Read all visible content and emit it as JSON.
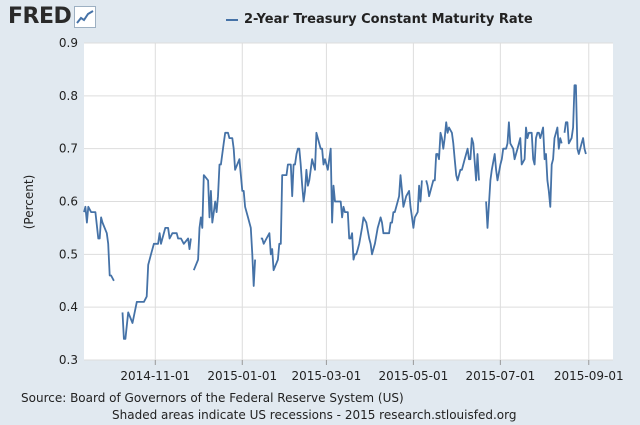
{
  "logo": {
    "text": "FRED"
  },
  "source_text": "Source: Board of Governors of the Federal Reserve System (US)",
  "note_text": "Shaded areas indicate US recessions - 2015 research.stlouisfed.org",
  "colors": {
    "background": "#e1e9f0",
    "plot": "#ffffff",
    "line": "#4572a7",
    "grid": "#dddddd"
  },
  "chart_data": {
    "type": "line",
    "title": "",
    "xlabel": "",
    "ylabel": "(Percent)",
    "grid": true,
    "legend_position": "top",
    "x_ticks": [
      "2014-11-01",
      "2015-01-01",
      "2015-03-01",
      "2015-05-01",
      "2015-07-01",
      "2015-09-01"
    ],
    "y_ticks": [
      0.3,
      0.4,
      0.5,
      0.6,
      0.7,
      0.8,
      0.9
    ],
    "xlim": [
      "2014-09-12",
      "2015-09-18"
    ],
    "ylim": [
      0.3,
      0.9
    ],
    "series": [
      {
        "name": "2-Year Treasury Constant Maturity Rate",
        "color": "#4572a7",
        "points": [
          [
            "2014-09-12",
            0.58
          ],
          [
            "2014-09-13",
            0.59
          ],
          [
            "2014-09-14",
            0.56
          ],
          [
            "2014-09-15",
            0.59
          ],
          [
            "2014-09-17",
            0.58
          ],
          [
            "2014-09-20",
            0.58
          ],
          [
            "2014-09-22",
            0.53
          ],
          [
            "2014-09-23",
            0.53
          ],
          [
            "2014-09-24",
            0.57
          ],
          [
            "2014-09-25",
            0.56
          ],
          [
            "2014-09-28",
            0.54
          ],
          [
            "2014-09-29",
            0.52
          ],
          [
            "2014-09-30",
            0.46
          ],
          [
            "2014-10-01",
            0.46
          ],
          [
            "2014-10-03",
            0.45
          ],
          null,
          [
            "2014-10-09",
            0.39
          ],
          [
            "2014-10-10",
            0.34
          ],
          [
            "2014-10-11",
            0.34
          ],
          [
            "2014-10-13",
            0.39
          ],
          [
            "2014-10-16",
            0.37
          ],
          [
            "2014-10-19",
            0.41
          ],
          [
            "2014-10-22",
            0.41
          ],
          [
            "2014-10-24",
            0.41
          ],
          [
            "2014-10-26",
            0.42
          ],
          [
            "2014-10-27",
            0.48
          ],
          [
            "2014-10-29",
            0.5
          ],
          [
            "2014-10-31",
            0.52
          ],
          [
            "2014-11-02",
            0.52
          ],
          [
            "2014-11-03",
            0.52
          ],
          [
            "2014-11-04",
            0.54
          ],
          [
            "2014-11-05",
            0.52
          ],
          [
            "2014-11-06",
            0.53
          ],
          [
            "2014-11-08",
            0.55
          ],
          [
            "2014-11-10",
            0.55
          ],
          [
            "2014-11-11",
            0.53
          ],
          [
            "2014-11-13",
            0.54
          ],
          [
            "2014-11-16",
            0.54
          ],
          [
            "2014-11-17",
            0.53
          ],
          [
            "2014-11-19",
            0.53
          ],
          [
            "2014-11-21",
            0.52
          ],
          [
            "2014-11-24",
            0.53
          ],
          [
            "2014-11-25",
            0.51
          ],
          [
            "2014-11-26",
            0.53
          ],
          null,
          [
            "2014-11-28",
            0.47
          ],
          [
            "2014-12-01",
            0.49
          ],
          [
            "2014-12-02",
            0.55
          ],
          [
            "2014-12-03",
            0.57
          ],
          [
            "2014-12-04",
            0.55
          ],
          [
            "2014-12-05",
            0.65
          ],
          [
            "2014-12-08",
            0.64
          ],
          [
            "2014-12-09",
            0.57
          ],
          [
            "2014-12-10",
            0.62
          ],
          [
            "2014-12-11",
            0.56
          ],
          [
            "2014-12-12",
            0.58
          ],
          [
            "2014-12-13",
            0.6
          ],
          [
            "2014-12-14",
            0.58
          ],
          [
            "2014-12-15",
            0.61
          ],
          [
            "2014-12-16",
            0.67
          ],
          [
            "2014-12-17",
            0.67
          ],
          [
            "2014-12-19",
            0.71
          ],
          [
            "2014-12-20",
            0.73
          ],
          [
            "2014-12-21",
            0.73
          ],
          [
            "2014-12-22",
            0.73
          ],
          [
            "2014-12-23",
            0.72
          ],
          [
            "2014-12-25",
            0.72
          ],
          [
            "2014-12-26",
            0.7
          ],
          [
            "2014-12-27",
            0.66
          ],
          [
            "2014-12-30",
            0.68
          ],
          [
            "2015-01-01",
            0.62
          ],
          [
            "2015-01-02",
            0.62
          ],
          [
            "2015-01-03",
            0.59
          ],
          [
            "2015-01-05",
            0.57
          ],
          [
            "2015-01-07",
            0.55
          ],
          [
            "2015-01-08",
            0.5
          ],
          [
            "2015-01-09",
            0.44
          ],
          [
            "2015-01-10",
            0.49
          ],
          null,
          [
            "2015-01-14",
            0.53
          ],
          [
            "2015-01-15",
            0.53
          ],
          [
            "2015-01-16",
            0.52
          ],
          [
            "2015-01-18",
            0.53
          ],
          [
            "2015-01-20",
            0.54
          ],
          [
            "2015-01-21",
            0.5
          ],
          [
            "2015-01-22",
            0.51
          ],
          [
            "2015-01-23",
            0.47
          ],
          [
            "2015-01-26",
            0.49
          ],
          [
            "2015-01-27",
            0.52
          ],
          [
            "2015-01-28",
            0.52
          ],
          [
            "2015-01-29",
            0.65
          ],
          [
            "2015-01-30",
            0.65
          ],
          [
            "2015-02-01",
            0.65
          ],
          [
            "2015-02-02",
            0.67
          ],
          [
            "2015-02-04",
            0.67
          ],
          [
            "2015-02-05",
            0.61
          ],
          [
            "2015-02-06",
            0.67
          ],
          [
            "2015-02-07",
            0.67
          ],
          [
            "2015-02-08",
            0.69
          ],
          [
            "2015-02-09",
            0.7
          ],
          [
            "2015-02-10",
            0.7
          ],
          [
            "2015-02-11",
            0.67
          ],
          [
            "2015-02-12",
            0.63
          ],
          [
            "2015-02-13",
            0.6
          ],
          [
            "2015-02-14",
            0.62
          ],
          [
            "2015-02-15",
            0.66
          ],
          [
            "2015-02-16",
            0.63
          ],
          [
            "2015-02-17",
            0.64
          ],
          [
            "2015-02-19",
            0.68
          ],
          [
            "2015-02-21",
            0.66
          ],
          [
            "2015-02-22",
            0.73
          ],
          [
            "2015-02-23",
            0.72
          ],
          [
            "2015-02-25",
            0.7
          ],
          [
            "2015-02-26",
            0.7
          ],
          [
            "2015-02-27",
            0.67
          ],
          [
            "2015-02-28",
            0.68
          ],
          [
            "2015-03-01",
            0.67
          ],
          [
            "2015-03-02",
            0.66
          ],
          [
            "2015-03-04",
            0.7
          ],
          [
            "2015-03-05",
            0.56
          ],
          [
            "2015-03-06",
            0.63
          ],
          [
            "2015-03-07",
            0.6
          ],
          [
            "2015-03-09",
            0.6
          ],
          [
            "2015-03-11",
            0.6
          ],
          [
            "2015-03-12",
            0.57
          ],
          [
            "2015-03-13",
            0.59
          ],
          [
            "2015-03-14",
            0.58
          ],
          [
            "2015-03-16",
            0.58
          ],
          [
            "2015-03-17",
            0.53
          ],
          [
            "2015-03-18",
            0.53
          ],
          [
            "2015-03-19",
            0.54
          ],
          [
            "2015-03-20",
            0.49
          ],
          [
            "2015-03-21",
            0.5
          ],
          [
            "2015-03-22",
            0.5
          ],
          [
            "2015-03-23",
            0.51
          ],
          [
            "2015-03-24",
            0.52
          ],
          [
            "2015-03-26",
            0.55
          ],
          [
            "2015-03-27",
            0.57
          ],
          [
            "2015-03-29",
            0.56
          ],
          [
            "2015-03-31",
            0.53
          ],
          [
            "2015-04-01",
            0.52
          ],
          [
            "2015-04-02",
            0.5
          ],
          [
            "2015-04-04",
            0.52
          ],
          [
            "2015-04-06",
            0.55
          ],
          [
            "2015-04-07",
            0.56
          ],
          [
            "2015-04-08",
            0.57
          ],
          [
            "2015-04-09",
            0.56
          ],
          [
            "2015-04-10",
            0.54
          ],
          [
            "2015-04-12",
            0.54
          ],
          [
            "2015-04-14",
            0.54
          ],
          [
            "2015-04-15",
            0.56
          ],
          [
            "2015-04-16",
            0.56
          ],
          [
            "2015-04-17",
            0.58
          ],
          [
            "2015-04-18",
            0.58
          ],
          [
            "2015-04-20",
            0.6
          ],
          [
            "2015-04-21",
            0.61
          ],
          [
            "2015-04-22",
            0.65
          ],
          [
            "2015-04-23",
            0.62
          ],
          [
            "2015-04-24",
            0.59
          ],
          [
            "2015-04-26",
            0.61
          ],
          [
            "2015-04-28",
            0.62
          ],
          [
            "2015-04-29",
            0.59
          ],
          [
            "2015-04-30",
            0.57
          ],
          [
            "2015-05-01",
            0.55
          ],
          [
            "2015-05-02",
            0.57
          ],
          [
            "2015-05-04",
            0.58
          ],
          [
            "2015-05-05",
            0.63
          ],
          [
            "2015-05-06",
            0.6
          ],
          [
            "2015-05-07",
            0.64
          ],
          null,
          [
            "2015-05-10",
            0.64
          ],
          [
            "2015-05-11",
            0.63
          ],
          [
            "2015-05-12",
            0.61
          ],
          [
            "2015-05-13",
            0.62
          ],
          [
            "2015-05-14",
            0.63
          ],
          [
            "2015-05-15",
            0.64
          ],
          [
            "2015-05-16",
            0.64
          ],
          [
            "2015-05-17",
            0.69
          ],
          [
            "2015-05-18",
            0.69
          ],
          [
            "2015-05-19",
            0.68
          ],
          [
            "2015-05-20",
            0.73
          ],
          [
            "2015-05-21",
            0.72
          ],
          [
            "2015-05-22",
            0.7
          ],
          [
            "2015-05-23",
            0.72
          ],
          [
            "2015-05-24",
            0.75
          ],
          [
            "2015-05-25",
            0.73
          ],
          [
            "2015-05-26",
            0.74
          ],
          [
            "2015-05-28",
            0.73
          ],
          [
            "2015-05-29",
            0.71
          ],
          [
            "2015-05-30",
            0.68
          ],
          [
            "2015-05-31",
            0.65
          ],
          [
            "2015-06-01",
            0.64
          ],
          [
            "2015-06-03",
            0.66
          ],
          [
            "2015-06-04",
            0.66
          ],
          [
            "2015-06-05",
            0.67
          ],
          [
            "2015-06-06",
            0.68
          ],
          [
            "2015-06-08",
            0.7
          ],
          [
            "2015-06-09",
            0.68
          ],
          [
            "2015-06-10",
            0.68
          ],
          [
            "2015-06-11",
            0.72
          ],
          [
            "2015-06-12",
            0.71
          ],
          [
            "2015-06-14",
            0.64
          ],
          [
            "2015-06-15",
            0.69
          ],
          [
            "2015-06-16",
            0.64
          ],
          null,
          [
            "2015-06-21",
            0.6
          ],
          [
            "2015-06-22",
            0.55
          ],
          [
            "2015-06-24",
            0.64
          ],
          [
            "2015-06-25",
            0.66
          ],
          [
            "2015-06-27",
            0.69
          ],
          [
            "2015-06-28",
            0.66
          ],
          [
            "2015-06-29",
            0.64
          ],
          [
            "2015-07-01",
            0.67
          ],
          [
            "2015-07-02",
            0.68
          ],
          [
            "2015-07-03",
            0.7
          ],
          [
            "2015-07-05",
            0.7
          ],
          [
            "2015-07-06",
            0.71
          ],
          [
            "2015-07-07",
            0.75
          ],
          [
            "2015-07-08",
            0.71
          ],
          [
            "2015-07-10",
            0.7
          ],
          [
            "2015-07-11",
            0.68
          ],
          [
            "2015-07-12",
            0.69
          ],
          [
            "2015-07-13",
            0.7
          ],
          [
            "2015-07-15",
            0.72
          ],
          [
            "2015-07-16",
            0.67
          ],
          [
            "2015-07-18",
            0.68
          ],
          [
            "2015-07-19",
            0.74
          ],
          [
            "2015-07-20",
            0.72
          ],
          [
            "2015-07-21",
            0.73
          ],
          [
            "2015-07-22",
            0.73
          ],
          [
            "2015-07-23",
            0.73
          ],
          [
            "2015-07-24",
            0.68
          ],
          [
            "2015-07-25",
            0.67
          ],
          [
            "2015-07-26",
            0.72
          ],
          [
            "2015-07-27",
            0.73
          ],
          [
            "2015-07-28",
            0.73
          ],
          [
            "2015-07-29",
            0.72
          ],
          [
            "2015-07-30",
            0.73
          ],
          [
            "2015-07-31",
            0.74
          ],
          [
            "2015-08-01",
            0.68
          ],
          [
            "2015-08-02",
            0.69
          ],
          [
            "2015-08-03",
            0.64
          ],
          [
            "2015-08-04",
            0.62
          ],
          [
            "2015-08-05",
            0.59
          ],
          [
            "2015-08-06",
            0.67
          ],
          [
            "2015-08-07",
            0.68
          ],
          [
            "2015-08-08",
            0.72
          ],
          [
            "2015-08-09",
            0.73
          ],
          [
            "2015-08-10",
            0.74
          ],
          [
            "2015-08-11",
            0.7
          ],
          [
            "2015-08-12",
            0.72
          ],
          [
            "2015-08-13",
            0.71
          ],
          null,
          [
            "2015-08-15",
            0.73
          ],
          [
            "2015-08-16",
            0.75
          ],
          [
            "2015-08-17",
            0.75
          ],
          [
            "2015-08-18",
            0.71
          ],
          [
            "2015-08-20",
            0.72
          ],
          [
            "2015-08-21",
            0.74
          ],
          [
            "2015-08-22",
            0.82
          ],
          [
            "2015-08-23",
            0.82
          ],
          [
            "2015-08-24",
            0.7
          ],
          [
            "2015-08-25",
            0.69
          ],
          [
            "2015-08-26",
            0.7
          ],
          [
            "2015-08-27",
            0.71
          ],
          [
            "2015-08-28",
            0.72
          ],
          [
            "2015-08-29",
            0.7
          ],
          [
            "2015-08-30",
            0.69
          ]
        ]
      }
    ]
  }
}
